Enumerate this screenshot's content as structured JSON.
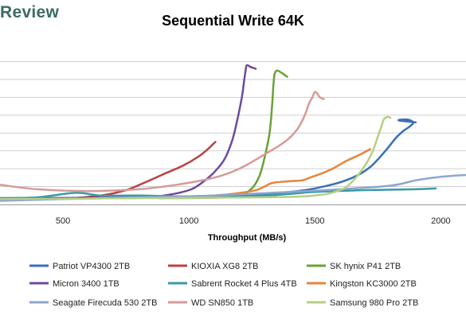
{
  "brand": {
    "text": "Review"
  },
  "chart_data": {
    "type": "line",
    "title": "Sequential Write 64K",
    "xlabel": "Throughput (MB/s)",
    "ylabel": "",
    "xlim": [
      250,
      2100
    ],
    "ylim": [
      0,
      9
    ],
    "xticks": [
      500,
      1000,
      1500,
      2000
    ],
    "yticks": [
      0,
      1,
      2,
      3,
      4,
      5,
      6,
      7,
      8
    ],
    "show_ytick_labels": false,
    "grid": "horizontal",
    "legend_position": "bottom",
    "series": [
      {
        "name": "Patriot VP4300 2TB",
        "color": "#3b6fb6",
        "points": [
          [
            250,
            0.3
          ],
          [
            700,
            0.35
          ],
          [
            1100,
            0.45
          ],
          [
            1400,
            0.7
          ],
          [
            1550,
            1.05
          ],
          [
            1650,
            1.5
          ],
          [
            1720,
            2.1
          ],
          [
            1780,
            3.0
          ],
          [
            1820,
            3.7
          ],
          [
            1850,
            4.1
          ],
          [
            1880,
            4.4
          ],
          [
            1890,
            4.6
          ],
          [
            1870,
            4.75
          ],
          [
            1845,
            4.75
          ],
          [
            1835,
            4.7
          ],
          [
            1900,
            4.6
          ]
        ]
      },
      {
        "name": "KIOXIA XG8 2TB",
        "color": "#b84341",
        "points": [
          [
            250,
            0.3
          ],
          [
            500,
            0.33
          ],
          [
            650,
            0.5
          ],
          [
            750,
            0.8
          ],
          [
            820,
            1.2
          ],
          [
            900,
            1.7
          ],
          [
            980,
            2.2
          ],
          [
            1040,
            2.7
          ],
          [
            1075,
            3.1
          ],
          [
            1105,
            3.5
          ]
        ]
      },
      {
        "name": "SK hynix P41 2TB",
        "color": "#6aa135",
        "points": [
          [
            880,
            0.35
          ],
          [
            1100,
            0.38
          ],
          [
            1200,
            0.5
          ],
          [
            1250,
            0.9
          ],
          [
            1280,
            1.6
          ],
          [
            1300,
            2.6
          ],
          [
            1320,
            4.0
          ],
          [
            1330,
            5.5
          ],
          [
            1335,
            6.6
          ],
          [
            1340,
            7.3
          ],
          [
            1350,
            7.5
          ],
          [
            1370,
            7.35
          ],
          [
            1390,
            7.15
          ]
        ]
      },
      {
        "name": "Micron 3400 1TB",
        "color": "#6d4a9c",
        "points": [
          [
            250,
            0.35
          ],
          [
            800,
            0.4
          ],
          [
            900,
            0.5
          ],
          [
            1000,
            0.8
          ],
          [
            1050,
            1.2
          ],
          [
            1100,
            1.8
          ],
          [
            1140,
            2.5
          ],
          [
            1170,
            3.5
          ],
          [
            1190,
            4.6
          ],
          [
            1210,
            6.0
          ],
          [
            1220,
            7.0
          ],
          [
            1225,
            7.5
          ],
          [
            1230,
            7.8
          ],
          [
            1245,
            7.7
          ],
          [
            1265,
            7.6
          ]
        ]
      },
      {
        "name": "Sabrent Rocket 4 Plus 4TB",
        "color": "#3a9aa8",
        "points": [
          [
            250,
            0.35
          ],
          [
            400,
            0.4
          ],
          [
            550,
            0.65
          ],
          [
            650,
            0.5
          ],
          [
            800,
            0.5
          ],
          [
            1000,
            0.45
          ],
          [
            1300,
            0.5
          ],
          [
            1500,
            0.7
          ],
          [
            1700,
            0.8
          ],
          [
            1900,
            0.85
          ],
          [
            1980,
            0.9
          ]
        ]
      },
      {
        "name": "Kingston KC3000 2TB",
        "color": "#e8843c",
        "points": [
          [
            900,
            0.4
          ],
          [
            1100,
            0.5
          ],
          [
            1250,
            0.75
          ],
          [
            1300,
            1.0
          ],
          [
            1330,
            1.2
          ],
          [
            1400,
            1.3
          ],
          [
            1450,
            1.35
          ],
          [
            1480,
            1.5
          ],
          [
            1520,
            1.7
          ],
          [
            1570,
            2.0
          ],
          [
            1620,
            2.4
          ],
          [
            1680,
            2.8
          ],
          [
            1720,
            3.1
          ]
        ]
      },
      {
        "name": "Seagate Firecuda 530 2TB",
        "color": "#8ca6cf",
        "points": [
          [
            250,
            0.2
          ],
          [
            500,
            0.3
          ],
          [
            800,
            0.4
          ],
          [
            1100,
            0.5
          ],
          [
            1400,
            0.7
          ],
          [
            1600,
            0.85
          ],
          [
            1800,
            1.05
          ],
          [
            1900,
            1.35
          ],
          [
            2000,
            1.55
          ],
          [
            2100,
            1.65
          ]
        ]
      },
      {
        "name": "WD SN850 1TB",
        "color": "#d69a99",
        "points": [
          [
            250,
            1.1
          ],
          [
            400,
            0.85
          ],
          [
            600,
            0.75
          ],
          [
            800,
            0.85
          ],
          [
            950,
            1.1
          ],
          [
            1100,
            1.5
          ],
          [
            1200,
            2.0
          ],
          [
            1300,
            2.8
          ],
          [
            1380,
            3.5
          ],
          [
            1430,
            4.2
          ],
          [
            1460,
            5.0
          ],
          [
            1475,
            5.6
          ],
          [
            1490,
            6.0
          ],
          [
            1500,
            6.3
          ],
          [
            1510,
            6.2
          ],
          [
            1520,
            6.0
          ],
          [
            1535,
            5.9
          ]
        ]
      },
      {
        "name": "Samsung 980 Pro 2TB",
        "color": "#b4d085",
        "points": [
          [
            250,
            0.3
          ],
          [
            800,
            0.35
          ],
          [
            1300,
            0.4
          ],
          [
            1500,
            0.5
          ],
          [
            1600,
            0.8
          ],
          [
            1650,
            1.3
          ],
          [
            1700,
            2.2
          ],
          [
            1730,
            3.0
          ],
          [
            1750,
            3.8
          ],
          [
            1765,
            4.4
          ],
          [
            1775,
            4.8
          ],
          [
            1790,
            4.9
          ],
          [
            1800,
            4.85
          ]
        ]
      }
    ]
  }
}
